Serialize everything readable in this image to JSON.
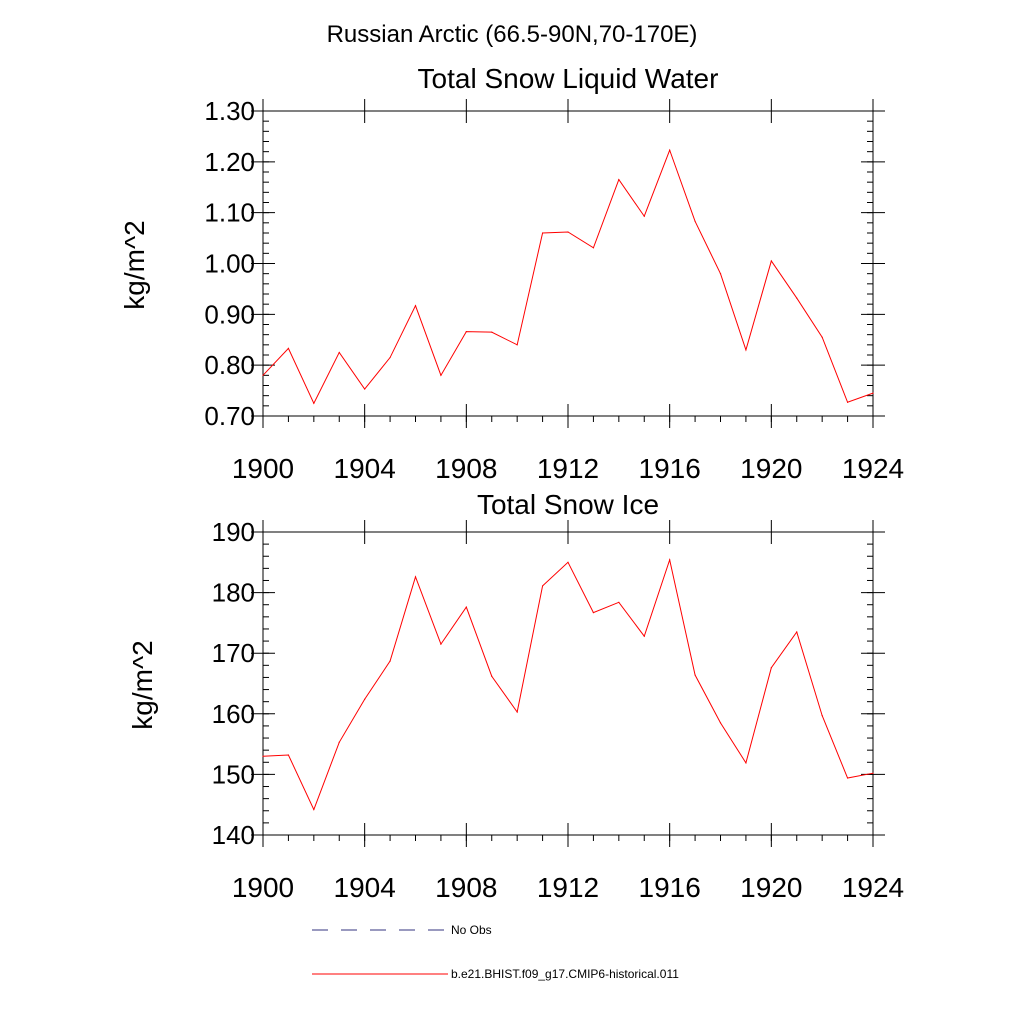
{
  "figure": {
    "suptitle": "Russian Arctic (66.5-90N,70-170E)"
  },
  "legend": {
    "items": [
      {
        "label": "No Obs",
        "color": "#33337f",
        "style": "dashed"
      },
      {
        "label": "b.e21.BHIST.f09_g17.CMIP6-historical.011",
        "color": "#ff0000",
        "style": "solid"
      }
    ]
  },
  "chart_data": [
    {
      "type": "line",
      "title": "Total Snow Liquid Water",
      "xlabel": "",
      "ylabel": "kg/m^2",
      "xlim": [
        1900,
        1924
      ],
      "ylim": [
        0.7,
        1.3
      ],
      "xticks": [
        1900,
        1904,
        1908,
        1912,
        1916,
        1920,
        1924
      ],
      "yticks": [
        0.7,
        0.8,
        0.9,
        1.0,
        1.1,
        1.2,
        1.3
      ],
      "ytick_labels": [
        "0.70",
        "0.80",
        "0.90",
        "1.00",
        "1.10",
        "1.20",
        "1.30"
      ],
      "grid": false,
      "x": [
        1900,
        1901,
        1902,
        1903,
        1904,
        1905,
        1906,
        1907,
        1908,
        1909,
        1910,
        1911,
        1912,
        1913,
        1914,
        1915,
        1916,
        1917,
        1918,
        1919,
        1920,
        1921,
        1922,
        1923,
        1924
      ],
      "series": [
        {
          "color": "#ff0000",
          "values": [
            0.78,
            0.833,
            0.725,
            0.825,
            0.753,
            0.815,
            0.917,
            0.78,
            0.866,
            0.865,
            0.84,
            1.06,
            1.062,
            1.031,
            1.165,
            1.093,
            1.223,
            1.083,
            0.98,
            0.83,
            1.005,
            0.932,
            0.855,
            0.727,
            0.745
          ]
        }
      ]
    },
    {
      "type": "line",
      "title": "Total Snow Ice",
      "xlabel": "",
      "ylabel": "kg/m^2",
      "xlim": [
        1900,
        1924
      ],
      "ylim": [
        140,
        190
      ],
      "xticks": [
        1900,
        1904,
        1908,
        1912,
        1916,
        1920,
        1924
      ],
      "yticks": [
        140,
        150,
        160,
        170,
        180,
        190
      ],
      "ytick_labels": [
        "140",
        "150",
        "160",
        "170",
        "180",
        "190"
      ],
      "grid": false,
      "x": [
        1900,
        1901,
        1902,
        1903,
        1904,
        1905,
        1906,
        1907,
        1908,
        1909,
        1910,
        1911,
        1912,
        1913,
        1914,
        1915,
        1916,
        1917,
        1918,
        1919,
        1920,
        1921,
        1922,
        1923,
        1924
      ],
      "series": [
        {
          "color": "#ff0000",
          "values": [
            153.0,
            153.2,
            144.2,
            155.3,
            162.4,
            168.7,
            182.6,
            171.5,
            177.6,
            166.2,
            160.3,
            181.1,
            185.0,
            176.7,
            178.4,
            172.8,
            185.4,
            166.4,
            158.5,
            151.9,
            167.6,
            173.5,
            159.7,
            149.4,
            150.2
          ]
        }
      ]
    }
  ]
}
